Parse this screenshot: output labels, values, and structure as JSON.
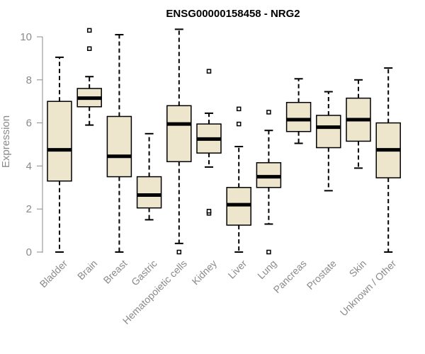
{
  "chart_data": {
    "type": "boxplot",
    "title": "ENSG00000158458 - NRG2",
    "ylabel": "Expression",
    "xlabel": "",
    "ylim": [
      0,
      10
    ],
    "yticks": [
      0,
      2,
      4,
      6,
      8,
      10
    ],
    "grid": false,
    "box_color": "#ede6cd",
    "categories": [
      "Bladder",
      "Brain",
      "Breast",
      "Gastric",
      "Hematopoietic cells",
      "Kidney",
      "Liver",
      "Lung",
      "Pancreas",
      "Prostate",
      "Skin",
      "Unknown / Other"
    ],
    "boxes": [
      {
        "min": 0.0,
        "q1": 3.3,
        "median": 4.75,
        "q3": 7.0,
        "max": 9.05,
        "outliers": []
      },
      {
        "min": 5.9,
        "q1": 6.75,
        "median": 7.15,
        "q3": 7.6,
        "max": 8.15,
        "outliers": [
          9.45,
          10.3
        ]
      },
      {
        "min": 0.0,
        "q1": 3.5,
        "median": 4.45,
        "q3": 6.3,
        "max": 10.1,
        "outliers": []
      },
      {
        "min": 1.5,
        "q1": 2.05,
        "median": 2.65,
        "q3": 3.5,
        "max": 5.5,
        "outliers": []
      },
      {
        "min": 0.4,
        "q1": 4.2,
        "median": 5.95,
        "q3": 6.8,
        "max": 10.35,
        "outliers": [
          0.0
        ]
      },
      {
        "min": 3.95,
        "q1": 4.6,
        "median": 5.25,
        "q3": 5.95,
        "max": 6.45,
        "outliers": [
          8.4,
          1.8,
          1.9
        ]
      },
      {
        "min": 0.0,
        "q1": 1.25,
        "median": 2.2,
        "q3": 3.0,
        "max": 4.9,
        "outliers": [
          6.65,
          5.95
        ]
      },
      {
        "min": 1.3,
        "q1": 3.0,
        "median": 3.5,
        "q3": 4.15,
        "max": 5.65,
        "outliers": [
          6.5,
          0.0
        ]
      },
      {
        "min": 5.05,
        "q1": 5.6,
        "median": 6.15,
        "q3": 6.95,
        "max": 8.05,
        "outliers": []
      },
      {
        "min": 2.85,
        "q1": 4.85,
        "median": 5.8,
        "q3": 6.35,
        "max": 7.45,
        "outliers": []
      },
      {
        "min": 3.9,
        "q1": 5.15,
        "median": 6.15,
        "q3": 7.15,
        "max": 8.0,
        "outliers": []
      },
      {
        "min": 0.0,
        "q1": 3.45,
        "median": 4.75,
        "q3": 6.0,
        "max": 8.55,
        "outliers": []
      }
    ]
  }
}
